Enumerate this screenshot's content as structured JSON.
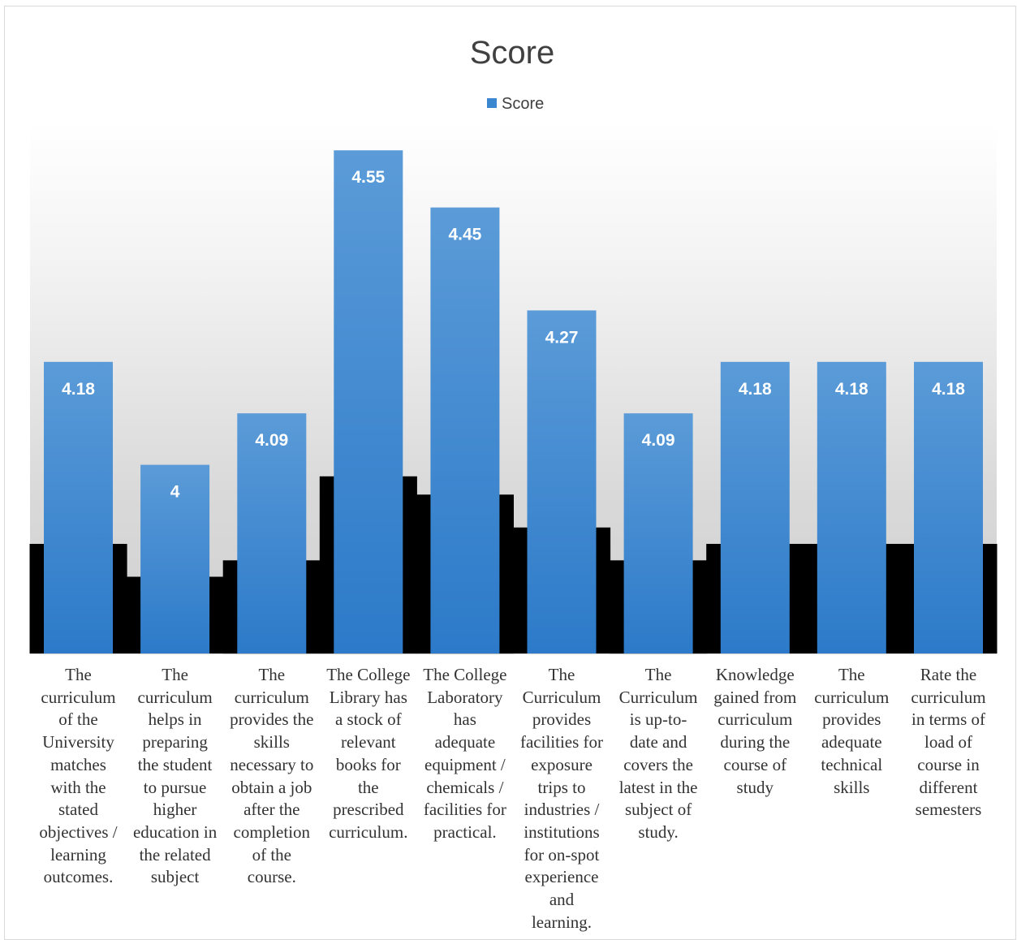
{
  "chart_data": {
    "type": "bar",
    "title": "Score",
    "legend": {
      "position": "top",
      "entries": [
        "Score"
      ]
    },
    "series": [
      {
        "name": "Score",
        "color": "#3a87d0",
        "values": [
          4.18,
          4,
          4.09,
          4.55,
          4.45,
          4.27,
          4.09,
          4.18,
          4.18,
          4.18
        ]
      }
    ],
    "data_labels": [
      "4.18",
      "4",
      "4.09",
      "4.55",
      "4.45",
      "4.27",
      "4.09",
      "4.18",
      "4.18",
      "4.18"
    ],
    "categories": [
      "The curriculum of the University matches with the stated objectives / learning outcomes.",
      "The curriculum helps in preparing the student to pursue higher education in the related subject",
      "The curriculum provides the skills necessary to obtain a job after the completion of the course.",
      "The College Library has a stock of relevant books for the prescribed curriculum.",
      "The College Laboratory has adequate equipment / chemicals / facilities for practical.",
      "The Curriculum provides facilities for exposure trips to industries / institutions for on-spot experience and learning.",
      "The Curriculum is up-to-date and covers the latest in the subject of study.",
      "Knowledge gained from curriculum during the course of study",
      "The curriculum provides adequate technical skills",
      "Rate the curriculum in terms of load of course in different semesters"
    ],
    "category_lines": [
      [
        "The",
        "curriculum",
        "of the",
        "University",
        "matches",
        "with the",
        "stated",
        "objectives /",
        "learning",
        "outcomes."
      ],
      [
        "The",
        "curriculum",
        "helps in",
        "preparing",
        "the student",
        "to pursue",
        "higher",
        "education in",
        "the related",
        "subject"
      ],
      [
        "The",
        "curriculum",
        "provides the",
        "skills",
        "necessary to",
        "obtain a job",
        "after the",
        "completion",
        "of the",
        "course."
      ],
      [
        "The College",
        "Library has",
        "a stock of",
        "relevant",
        "books for",
        "the",
        "prescribed",
        "curriculum."
      ],
      [
        "The College",
        "Laboratory",
        "has",
        "adequate",
        "equipment /",
        "chemicals /",
        "facilities for",
        "practical."
      ],
      [
        "The",
        "Curriculum",
        "provides",
        "facilities for",
        "exposure",
        "trips to",
        "industries /",
        "institutions",
        "for on-spot",
        "experience",
        "and",
        "learning."
      ],
      [
        "The",
        "Curriculum",
        "is up-to-",
        "date and",
        "covers the",
        "latest in the",
        "subject of",
        "study."
      ],
      [
        "Knowledge",
        "gained from",
        "curriculum",
        "during the",
        "course of",
        "study"
      ],
      [
        "The",
        "curriculum",
        "provides",
        "adequate",
        "technical",
        "skills"
      ],
      [
        "Rate the",
        "curriculum",
        "in terms of",
        "load of",
        "course in",
        "different",
        "semesters"
      ]
    ],
    "y_scale": {
      "min": 3.67,
      "max": 4.6
    },
    "grid": false
  }
}
